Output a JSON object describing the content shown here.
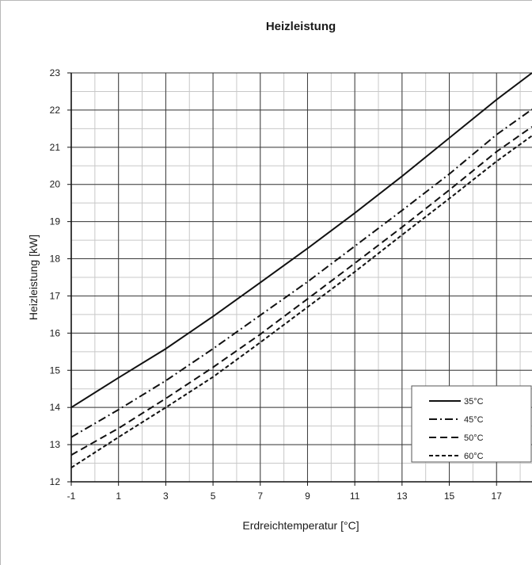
{
  "chart_data": {
    "type": "line",
    "title": "Heizleistung",
    "xlabel": "Erdreichtemperatur [°C]",
    "ylabel": "Heizleistung [kW]",
    "xlim": [
      -1,
      18.5
    ],
    "ylim": [
      12,
      23
    ],
    "x_ticks": [
      -1,
      1,
      3,
      5,
      7,
      9,
      11,
      13,
      15,
      17
    ],
    "y_ticks": [
      12,
      13,
      14,
      15,
      16,
      17,
      18,
      19,
      20,
      21,
      22,
      23
    ],
    "grid": true,
    "legend_position": "bottom-right",
    "series": [
      {
        "name": "35°C",
        "line_style": "solid",
        "x": [
          -1,
          1,
          3,
          5,
          7,
          9,
          11,
          13,
          15,
          17,
          18.5
        ],
        "y": [
          14.0,
          14.8,
          15.58,
          16.45,
          17.36,
          18.28,
          19.23,
          20.22,
          21.25,
          22.28,
          23.0
        ]
      },
      {
        "name": "45°C",
        "line_style": "dash-dot",
        "x": [
          -1,
          1,
          3,
          5,
          7,
          9,
          11,
          13,
          15,
          17,
          18.5
        ],
        "y": [
          13.2,
          13.94,
          14.72,
          15.58,
          16.48,
          17.38,
          18.34,
          19.3,
          20.28,
          21.34,
          22.02
        ]
      },
      {
        "name": "50°C",
        "line_style": "dashed",
        "x": [
          -1,
          1,
          3,
          5,
          7,
          9,
          11,
          13,
          15,
          17,
          18.5
        ],
        "y": [
          12.72,
          13.44,
          14.24,
          15.08,
          15.97,
          16.92,
          17.88,
          18.85,
          19.85,
          20.88,
          21.55
        ]
      },
      {
        "name": "60°C",
        "line_style": "dotted-dash",
        "x": [
          -1,
          1,
          3,
          5,
          7,
          9,
          11,
          13,
          15,
          17,
          18.5
        ],
        "y": [
          12.38,
          13.2,
          14.0,
          14.82,
          15.75,
          16.7,
          17.65,
          18.64,
          19.62,
          20.62,
          21.31
        ]
      }
    ]
  }
}
